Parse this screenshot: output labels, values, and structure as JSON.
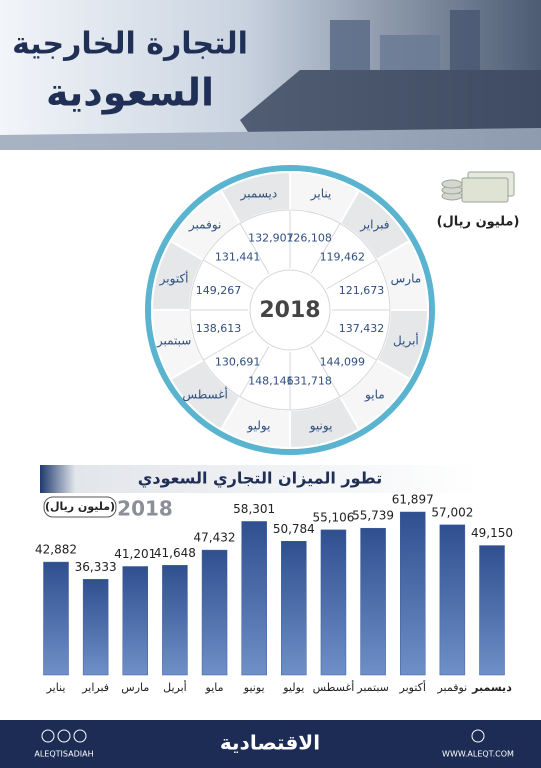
{
  "header": {
    "title_line1": "التجارة الخارجية",
    "title_line2": "السعودية"
  },
  "chart_data": [
    {
      "type": "radial",
      "center_label": "2018",
      "unit": "(مليون ريال)",
      "categories": [
        "يناير",
        "فبراير",
        "مارس",
        "أبريل",
        "مايو",
        "يونيو",
        "يوليو",
        "أغسطس",
        "سبتمبر",
        "أكتوبر",
        "نوفمبر",
        "ديسمبر"
      ],
      "values": [
        126108,
        119462,
        121673,
        137432,
        144099,
        131718,
        148146,
        130691,
        138613,
        149267,
        131441,
        132907
      ],
      "value_labels": [
        "126,108",
        "119,462",
        "121,673",
        "137,432",
        "144,099",
        "131,718",
        "148,146",
        "130,691",
        "138,613",
        "149,267",
        "131,441",
        "132,907"
      ]
    },
    {
      "type": "bar",
      "title": "تطور الميزان التجاري السعودي",
      "subtitle": "2018",
      "unit": "(مليون ريال)",
      "categories": [
        "يناير",
        "فبراير",
        "مارس",
        "أبريل",
        "مايو",
        "يونيو",
        "يوليو",
        "أغسطس",
        "سبتمبر",
        "أكتوبر",
        "نوفمبر",
        "ديسمبر"
      ],
      "values": [
        42882,
        36333,
        41201,
        41648,
        47432,
        58301,
        50784,
        55106,
        55739,
        61897,
        57002,
        49150
      ],
      "value_labels": [
        "42,882",
        "36,333",
        "41,201",
        "41,648",
        "47,432",
        "58,301",
        "50,784",
        "55,106",
        "55,739",
        "61,897",
        "57,002",
        "49,150"
      ],
      "color": "#3a5c9c"
    }
  ],
  "footer": {
    "brand": "الاقتصادية",
    "handle": "ALEQTISADIAH",
    "website": "WWW.ALEQT.COM"
  }
}
